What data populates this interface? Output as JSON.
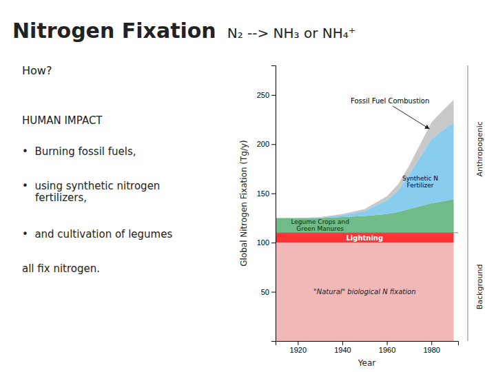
{
  "chart_data": {
    "type": "area",
    "stacked": true,
    "title": "Nitrogen Fixation",
    "subtitle": "N₂ --> NH₃ or NH₄⁺",
    "side_text": [
      "How?",
      "HUMAN IMPACT",
      "•  Burning fossil fuels,",
      "•  using synthetic nitrogen\n    fertilizers,",
      "•  and cultivation of legumes",
      "all fix nitrogen."
    ],
    "x": [
      1910,
      1920,
      1930,
      1940,
      1950,
      1960,
      1965,
      1970,
      1975,
      1980,
      1985,
      1990
    ],
    "series": [
      {
        "name": "\"Natural\" biological N fixation",
        "color": "#f2b8b8",
        "values": [
          100,
          100,
          100,
          100,
          100,
          100,
          100,
          100,
          100,
          100,
          100,
          100
        ]
      },
      {
        "name": "Lightning",
        "color": "#ff3333",
        "values": [
          10,
          10,
          10,
          10,
          10,
          10,
          10,
          10,
          10,
          10,
          10,
          10
        ]
      },
      {
        "name": "Legume Crops and\nGreen Manures",
        "color": "#70bb88",
        "values": [
          15,
          15,
          15,
          16,
          17,
          19,
          21,
          24,
          27,
          30,
          32,
          34
        ]
      },
      {
        "name": "Synthetic N\nFertilizer",
        "color": "#88ccee",
        "values": [
          0,
          0,
          0.5,
          2,
          5,
          14,
          22,
          35,
          50,
          65,
          72,
          78
        ]
      },
      {
        "name": "Fossil Fuel Combustion",
        "color": "#c8c8c8",
        "values": [
          0,
          0,
          0.5,
          1,
          2,
          4,
          6,
          9,
          13,
          17,
          20,
          23
        ]
      }
    ],
    "reference_line": 110,
    "region_labels": [
      "Anthropogenic",
      "Background"
    ],
    "xlabel": "Year",
    "ylabel": "Global Nitrogen Fixation (Tg/y)",
    "xlim": [
      1910,
      1992
    ],
    "xticks": [
      1920,
      1940,
      1960,
      1980
    ],
    "ylim": [
      0,
      280
    ],
    "yticks": [
      50,
      100,
      150,
      200,
      250
    ],
    "grid": false
  }
}
